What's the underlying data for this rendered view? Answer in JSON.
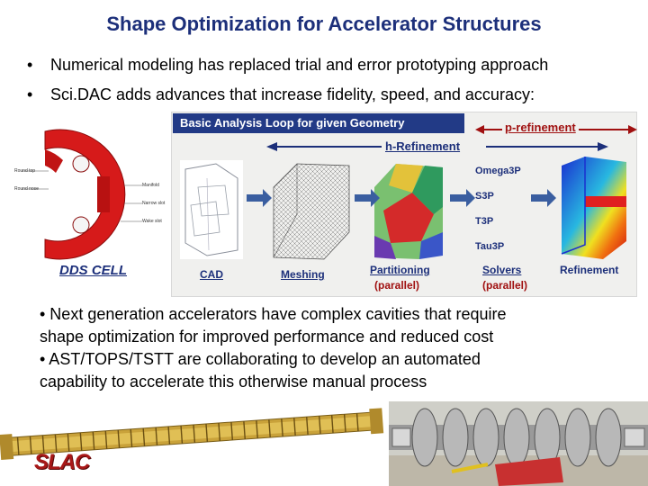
{
  "title": "Shape Optimization for Accelerator Structures",
  "bullets_top": [
    "Numerical modeling has replaced trial and error prototyping approach",
    "Sci.DAC adds advances that increase fidelity, speed, and accuracy:"
  ],
  "figure": {
    "loop_label": "Basic Analysis Loop for given Geometry",
    "p_refinement": "p-refinement",
    "h_refinement": "h-Refinement",
    "dds_cell": "DDS CELL",
    "dds_parts": [
      "Round top",
      "Round nose",
      "Manifold",
      "Narrow slot",
      "Wake slot"
    ],
    "stages": [
      {
        "label": "CAD",
        "sub": ""
      },
      {
        "label": "Meshing",
        "sub": ""
      },
      {
        "label": "Partitioning",
        "sub": "(parallel)"
      },
      {
        "label": "Solvers",
        "sub": "(parallel)"
      },
      {
        "label": "Refinement",
        "sub": ""
      }
    ],
    "solvers": [
      "Omega3P",
      "S3P",
      "T3P",
      "Tau3P"
    ]
  },
  "bullets_bottom": [
    "•  Next generation accelerators have complex cavities that require",
    "shape optimization for improved performance and reduced cost",
    "•  AST/TOPS/TSTT are collaborating to develop an automated",
    "capability to accelerate this otherwise manual process"
  ],
  "logo": "SLAC",
  "colors": {
    "title": "#1c2f7a",
    "loop_box": "#223a86",
    "red_accent": "#a01010",
    "arrow": "#3a5ea0"
  }
}
